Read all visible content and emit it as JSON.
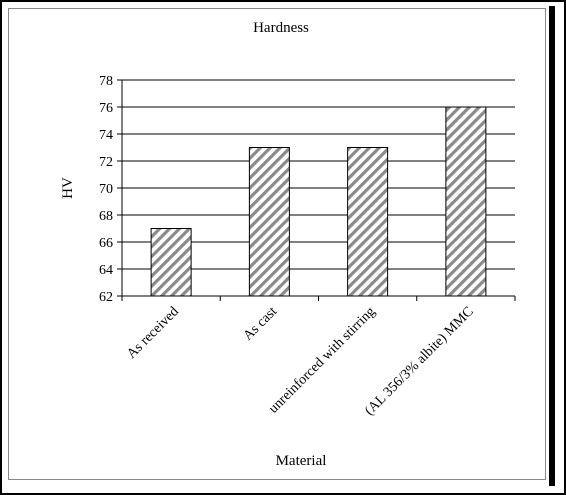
{
  "chart_data": {
    "type": "bar",
    "title": "Hardness",
    "xlabel": "Material",
    "ylabel": "HV",
    "categories": [
      "As received",
      "As cast",
      "unreinforced with stirring",
      "(AL 356/3% albite) MMC"
    ],
    "values": [
      67,
      73,
      73,
      76
    ],
    "ylim": [
      62,
      78
    ],
    "yticks": [
      "62",
      "64",
      "66",
      "68",
      "70",
      "72",
      "74",
      "76",
      "78"
    ],
    "grid": true,
    "legend": "none",
    "bar_fill": "diagonal-hatch",
    "colors": {
      "bar_stroke": "#000000",
      "hatch": "#8a8a8a",
      "grid": "#000000"
    }
  }
}
